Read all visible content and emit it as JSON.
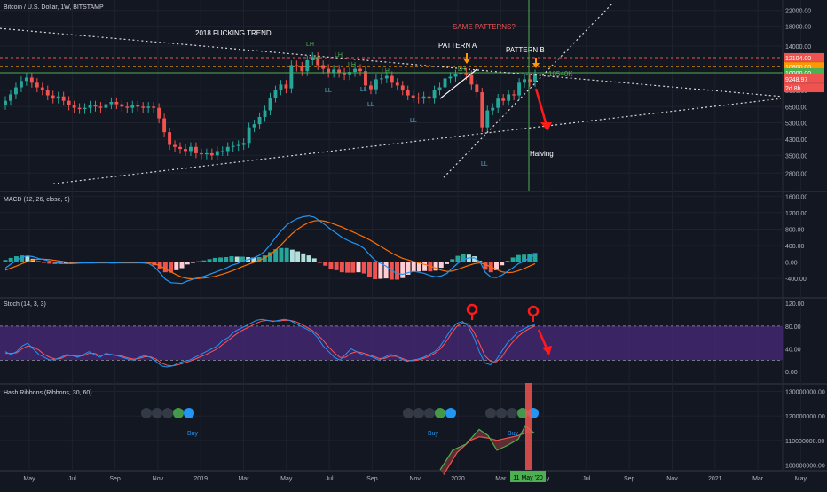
{
  "header": {
    "symbol": "Bitcoin / U.S. Dollar, 1W, BITSTAMP"
  },
  "colors": {
    "bg": "#131722",
    "grid": "#1e2230",
    "up": "#26a69a",
    "down": "#ef5350",
    "white": "#e8e8e8",
    "green": "#4caf50",
    "red": "#ef5350",
    "orange": "#ff9800",
    "macd": "#2196f3",
    "signal": "#ff6d00",
    "stochK": "#2196f3",
    "stochD": "#ff5252",
    "stochBand": "#4a2a7a",
    "ribbonFast": "#4caf50",
    "ribbonSlow": "#ef5350"
  },
  "chart_data": [
    {
      "type": "candlestick",
      "title": "Bitcoin / U.S. Dollar, 1W, BITSTAMP",
      "yscale": "log",
      "ylim": [
        2400,
        24000
      ],
      "yticks": [
        "22000.00",
        "18000.00",
        "14000.00",
        "10000.00",
        "8000.00",
        "6500.00",
        "5300.00",
        "4300.00",
        "3500.00",
        "2800.00"
      ],
      "price_labels": [
        {
          "text": "12104.00",
          "color": "#ef5350"
        },
        {
          "text": "10800.00",
          "color": "#ff9800"
        },
        {
          "text": "10000.00",
          "color": "#4caf50"
        },
        {
          "text": "9248.97",
          "color": "#ef5350"
        },
        {
          "text": "2d 8h",
          "color": "#ef5350"
        }
      ],
      "close": [
        7000,
        7600,
        8300,
        9000,
        9400,
        8800,
        8300,
        8000,
        7500,
        7200,
        7400,
        7000,
        6600,
        6400,
        6300,
        6400,
        6600,
        6500,
        6400,
        6700,
        6900,
        6700,
        6500,
        6400,
        6600,
        6500,
        6400,
        6500,
        6400,
        5600,
        4700,
        4000,
        3900,
        3800,
        3700,
        3900,
        3600,
        3550,
        3600,
        3500,
        3700,
        3700,
        3900,
        3950,
        4000,
        4100,
        5000,
        5200,
        5700,
        6200,
        7300,
        8000,
        8600,
        8200,
        11000,
        10800,
        10200,
        11700,
        12200,
        11000,
        10500,
        10000,
        10400,
        10000,
        9700,
        10100,
        10500,
        10200,
        8500,
        8100,
        9200,
        9300,
        9600,
        8800,
        8500,
        8000,
        7500,
        7300,
        7200,
        7400,
        7200,
        8000,
        8300,
        9300,
        9500,
        9800,
        10000,
        9700,
        8600,
        7800,
        5000,
        6200,
        6400,
        7200,
        7000,
        7600,
        7500,
        8800,
        9200,
        8900,
        9800
      ],
      "annotations": [
        "2018 FUCKING TREND",
        "SAME PATTERNS?",
        "PATTERN A",
        "PATTERN B",
        "10540K",
        "Halving",
        "LH",
        "LH",
        "LH",
        "LH",
        "LH",
        "LH",
        "LL",
        "LL",
        "LL",
        "LL",
        "LL"
      ]
    },
    {
      "type": "histogram",
      "title": "MACD (12, 26, close, 9)",
      "yticks": [
        "1600.00",
        "1200.00",
        "800.00",
        "400.00",
        "0.00",
        "-400.00"
      ],
      "ylim": [
        -850,
        1650
      ],
      "macd": [
        -150,
        -50,
        40,
        120,
        150,
        130,
        90,
        60,
        20,
        -10,
        -30,
        -40,
        -40,
        -30,
        -20,
        -20,
        -20,
        -10,
        -10,
        -20,
        -20,
        -10,
        -10,
        -10,
        -10,
        -20,
        -40,
        -120,
        -260,
        -420,
        -500,
        -510,
        -520,
        -460,
        -420,
        -380,
        -350,
        -300,
        -250,
        -200,
        -150,
        -80,
        -40,
        20,
        60,
        100,
        160,
        260,
        420,
        600,
        760,
        900,
        990,
        1060,
        1100,
        1120,
        1090,
        1000,
        900,
        790,
        700,
        600,
        530,
        470,
        420,
        330,
        180,
        40,
        -30,
        -100,
        -210,
        -280,
        -300,
        -260,
        -230,
        -250,
        -280,
        -330,
        -360,
        -340,
        -280,
        -150,
        -30,
        60,
        100,
        100,
        10,
        -250,
        -370,
        -380,
        -320,
        -230,
        -140,
        -40,
        20,
        100,
        180
      ],
      "signal": [
        -200,
        -150,
        -100,
        -40,
        10,
        50,
        70,
        70,
        60,
        40,
        20,
        0,
        -10,
        -20,
        -20,
        -20,
        -20,
        -20,
        -20,
        -20,
        -20,
        -20,
        -20,
        -20,
        -20,
        -20,
        -20,
        -40,
        -90,
        -170,
        -240,
        -310,
        -370,
        -400,
        -410,
        -400,
        -390,
        -370,
        -350,
        -310,
        -270,
        -220,
        -170,
        -110,
        -60,
        -10,
        40,
        100,
        180,
        290,
        420,
        560,
        690,
        800,
        890,
        960,
        1000,
        1010,
        990,
        950,
        900,
        850,
        790,
        730,
        670,
        610,
        540,
        460,
        380,
        300,
        220,
        150,
        90,
        50,
        10,
        -20,
        -60,
        -100,
        -150,
        -200,
        -230,
        -220,
        -180,
        -130,
        -80,
        -40,
        -20,
        -60,
        -120,
        -180,
        -240,
        -260,
        -250,
        -210,
        -160,
        -100,
        -40
      ],
      "hist": [
        50,
        100,
        140,
        160,
        140,
        80,
        20,
        -10,
        -40,
        -50,
        -50,
        -40,
        -30,
        -10,
        0,
        0,
        0,
        10,
        10,
        0,
        0,
        10,
        10,
        10,
        10,
        0,
        -20,
        -80,
        -170,
        -250,
        -260,
        -200,
        -150,
        -60,
        -10,
        20,
        40,
        70,
        100,
        110,
        120,
        140,
        130,
        130,
        120,
        110,
        120,
        160,
        240,
        310,
        340,
        340,
        300,
        260,
        210,
        160,
        90,
        -10,
        -90,
        -160,
        -200,
        -250,
        -260,
        -260,
        -250,
        -280,
        -360,
        -420,
        -410,
        -400,
        -430,
        -430,
        -390,
        -310,
        -240,
        -230,
        -220,
        -230,
        -210,
        -140,
        -50,
        70,
        150,
        190,
        180,
        140,
        30,
        -190,
        -250,
        -200,
        -80,
        30,
        110,
        170,
        180,
        200,
        220
      ]
    },
    {
      "type": "line",
      "title": "Stoch (14, 3, 3)",
      "yticks": [
        "120.00",
        "80.00",
        "40.00",
        "0.00"
      ],
      "ylim": [
        -20,
        125
      ],
      "band": [
        20,
        80
      ],
      "k": [
        35,
        30,
        35,
        45,
        50,
        40,
        30,
        25,
        20,
        22,
        25,
        30,
        28,
        25,
        30,
        35,
        30,
        25,
        32,
        30,
        28,
        25,
        22,
        20,
        25,
        28,
        25,
        18,
        10,
        8,
        10,
        15,
        18,
        20,
        25,
        30,
        35,
        40,
        45,
        55,
        60,
        70,
        75,
        80,
        85,
        90,
        92,
        90,
        88,
        90,
        92,
        90,
        85,
        80,
        75,
        70,
        60,
        45,
        35,
        25,
        20,
        30,
        40,
        35,
        30,
        28,
        25,
        20,
        25,
        30,
        28,
        22,
        18,
        20,
        22,
        25,
        30,
        35,
        45,
        60,
        75,
        85,
        88,
        80,
        60,
        35,
        15,
        12,
        20,
        35,
        50,
        60,
        70,
        75,
        80,
        82
      ],
      "d": [
        32,
        32,
        33,
        40,
        45,
        43,
        38,
        30,
        25,
        22,
        23,
        28,
        28,
        27,
        28,
        32,
        32,
        28,
        30,
        30,
        29,
        27,
        24,
        22,
        23,
        26,
        26,
        22,
        15,
        11,
        10,
        12,
        15,
        18,
        22,
        26,
        30,
        35,
        40,
        48,
        55,
        63,
        70,
        75,
        80,
        85,
        89,
        90,
        89,
        89,
        90,
        90,
        88,
        84,
        78,
        73,
        65,
        55,
        43,
        33,
        25,
        25,
        32,
        35,
        33,
        30,
        27,
        23,
        23,
        27,
        27,
        24,
        20,
        19,
        20,
        23,
        27,
        32,
        40,
        52,
        67,
        80,
        86,
        84,
        70,
        50,
        28,
        18,
        17,
        25,
        40,
        52,
        62,
        70,
        76,
        80
      ]
    },
    {
      "type": "line",
      "title": "Hash Ribbons (Ribbons, 30, 60)",
      "yticks": [
        "130000000.00",
        "120000000.00",
        "110000000.00",
        "100000000.00"
      ],
      "ylim": [
        98000000,
        132000000
      ],
      "buy_labels": [
        "Buy",
        "Buy",
        "Buy"
      ]
    }
  ],
  "x_axis": {
    "labels": [
      "May",
      "Jul",
      "Sep",
      "Nov",
      "2019",
      "Mar",
      "May",
      "Jul",
      "Sep",
      "Nov",
      "2020",
      "Mar",
      "May",
      "Jul",
      "Sep",
      "Nov",
      "2021",
      "Mar",
      "May"
    ],
    "current_date": "11 May '20"
  }
}
